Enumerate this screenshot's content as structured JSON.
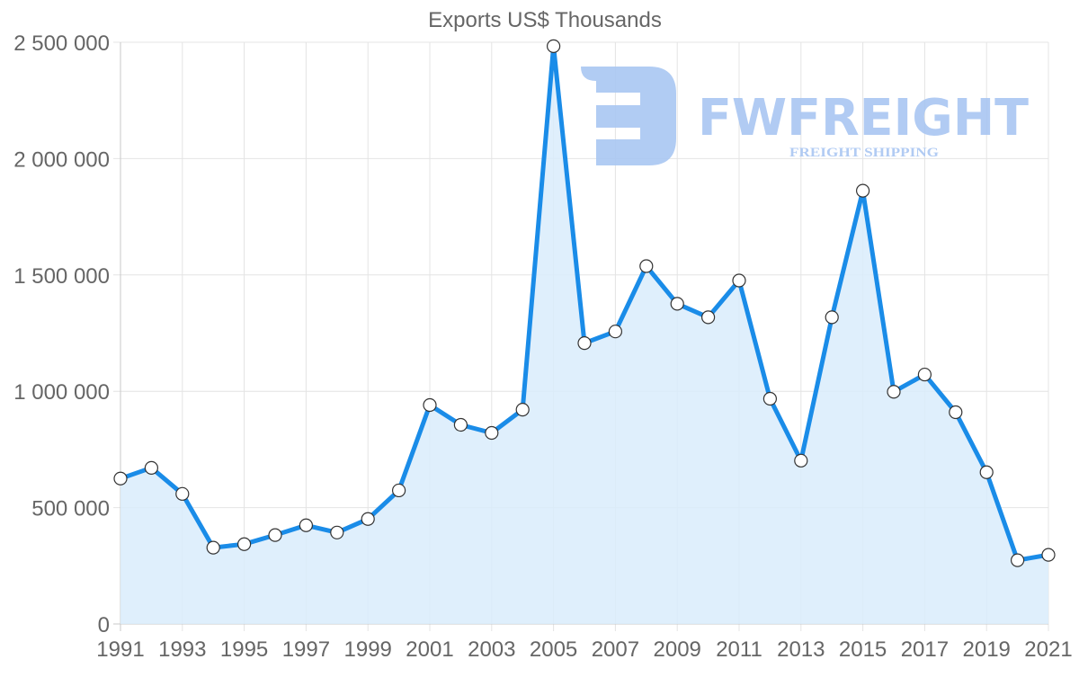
{
  "chart_data": {
    "type": "area",
    "title": "Exports US$ Thousands",
    "xlabel": "",
    "ylabel": "",
    "x": [
      1991,
      1992,
      1993,
      1994,
      1995,
      1996,
      1997,
      1998,
      1999,
      2000,
      2001,
      2002,
      2003,
      2004,
      2005,
      2006,
      2007,
      2008,
      2009,
      2010,
      2011,
      2012,
      2013,
      2014,
      2015,
      2016,
      2017,
      2018,
      2019,
      2020,
      2021
    ],
    "series": [
      {
        "name": "Exports US$ Thousands",
        "values": [
          625000,
          671000,
          559000,
          328000,
          343000,
          382000,
          424000,
          393000,
          451000,
          574000,
          941000,
          856000,
          821000,
          921000,
          2483000,
          1207000,
          1257000,
          1538000,
          1376000,
          1318000,
          1476000,
          968000,
          702000,
          1318000,
          1862000,
          998000,
          1072000,
          910000,
          652000,
          274000,
          297000
        ]
      }
    ],
    "ylim": [
      0,
      2500000
    ],
    "xlim": [
      1991,
      2021
    ],
    "yticks": [
      0,
      500000,
      1000000,
      1500000,
      2000000,
      2500000
    ],
    "ytick_labels": [
      "0",
      "500 000",
      "1 000 000",
      "1 500 000",
      "2 000 000",
      "2 500 000"
    ],
    "xtick_labels": [
      "1991",
      "1993",
      "1995",
      "1997",
      "1999",
      "2001",
      "2003",
      "2005",
      "2007",
      "2009",
      "2011",
      "2013",
      "2015",
      "2017",
      "2019",
      "2021"
    ],
    "grid": true,
    "legend": "none",
    "colors": {
      "line": "#1a8ce8",
      "fill": "#d9ecfc",
      "marker_fill": "#ffffff",
      "marker_stroke": "#333333"
    }
  },
  "watermark": {
    "brand": "FWFREIGHT",
    "tagline": "FREIGHT SHIPPING",
    "color": "#a9c6f2"
  }
}
